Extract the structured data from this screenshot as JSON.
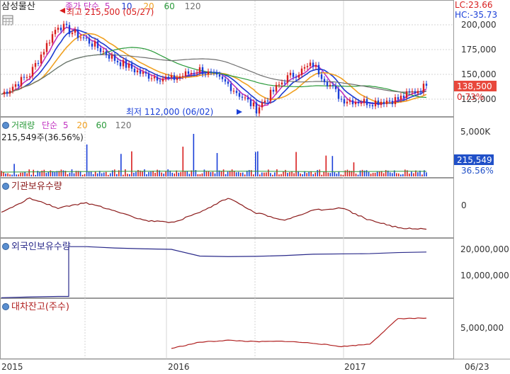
{
  "stock_name": "삼성물산",
  "colors": {
    "candle_up": "#d81e1e",
    "candle_down": "#1a3fd8",
    "ma5": "#c030c0",
    "ma10": "#1d3bd0",
    "ma20": "#f0a020",
    "ma60": "#2a9a3a",
    "ma120": "#707070",
    "institution": "#8b1a1a",
    "foreign": "#2a2a8a",
    "lending": "#b02020",
    "grid": "#d4d4d4",
    "badge_red": "#e8483c",
    "badge_blue": "#2050c8"
  },
  "top_right": {
    "lc": "LC:23.66",
    "hc": "HC:-35.73"
  },
  "price_panel": {
    "legend_main": "종가 단순",
    "ma_labels": [
      "5",
      "10",
      "20",
      "60",
      "120"
    ],
    "high_label": "최고 215,500 (05/27)",
    "low_label": "최저 112,000 (06/02)",
    "current_price": "138,500",
    "change_pct": "0.73%",
    "y_ticks": [
      "200,000",
      "175,000",
      "150,000",
      "125,000"
    ]
  },
  "volume_panel": {
    "title": "거래량",
    "legend_type": "단순",
    "ma_labels": [
      "5",
      "20",
      "60",
      "120"
    ],
    "sub_label": "215,549주(36.56%)",
    "current_value": "215,549",
    "current_pct": "36.56%",
    "y_ticks": [
      "5,000K"
    ]
  },
  "institution_panel": {
    "title": "기관보유수량",
    "y_ticks": [
      "0"
    ]
  },
  "foreign_panel": {
    "title": "외국인보유수량",
    "y_ticks": [
      "20,000,000",
      "10,000,000"
    ]
  },
  "lending_panel": {
    "title": "대차잔고(주수)",
    "y_ticks": [
      "5,000,000"
    ]
  },
  "x_axis": {
    "labels": [
      "2015",
      "2016",
      "2017",
      "06/23"
    ]
  },
  "chart_data": {
    "type": "line",
    "x": [
      "2015-01",
      "2015-03",
      "2015-05",
      "2015-06",
      "2015-08",
      "2015-10",
      "2015-12",
      "2016-02",
      "2016-04",
      "2016-06",
      "2016-08",
      "2016-10",
      "2016-12",
      "2017-02",
      "2017-04",
      "2017-06"
    ],
    "series": [
      {
        "name": "종가",
        "values": [
          130000,
          150000,
          200000,
          185000,
          165000,
          150000,
          145000,
          155000,
          140000,
          115000,
          145000,
          160000,
          125000,
          122000,
          125000,
          138500
        ]
      },
      {
        "name": "기관보유수량",
        "values": [
          0,
          0,
          0,
          0,
          0,
          0,
          0,
          0,
          0,
          0,
          0,
          0,
          0,
          0,
          0,
          0
        ]
      },
      {
        "name": "외국인보유수량",
        "values": [
          2000000,
          2300000,
          2500000,
          21000000,
          20500000,
          20200000,
          20000000,
          17500000,
          17300000,
          17400000,
          17700000,
          18200000,
          18300000,
          18400000,
          18800000,
          19000000
        ]
      },
      {
        "name": "대차잔고(주수)",
        "values": [
          null,
          null,
          null,
          null,
          null,
          null,
          600000,
          1900000,
          2300000,
          2000000,
          2100000,
          1700000,
          1000000,
          1500000,
          6800000,
          6900000
        ]
      }
    ]
  }
}
